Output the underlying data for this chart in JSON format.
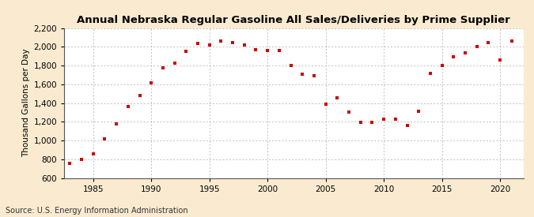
{
  "title": "Annual Nebraska Regular Gasoline All Sales/Deliveries by Prime Supplier",
  "ylabel": "Thousand Gallons per Day",
  "source": "Source: U.S. Energy Information Administration",
  "background_color": "#faebd0",
  "plot_bg_color": "#ffffff",
  "marker_color": "#cc0000",
  "years": [
    1983,
    1984,
    1985,
    1986,
    1987,
    1988,
    1989,
    1990,
    1991,
    1992,
    1993,
    1994,
    1995,
    1996,
    1997,
    1998,
    1999,
    2000,
    2001,
    2002,
    2003,
    2004,
    2005,
    2006,
    2007,
    2008,
    2009,
    2010,
    2011,
    2012,
    2013,
    2014,
    2015,
    2016,
    2017,
    2018,
    2019,
    2020,
    2021
  ],
  "values": [
    755,
    800,
    860,
    1020,
    1175,
    1360,
    1480,
    1620,
    1775,
    1830,
    1950,
    2040,
    2020,
    2060,
    2050,
    2020,
    1970,
    1960,
    1960,
    1800,
    1710,
    1690,
    1390,
    1460,
    1300,
    1195,
    1195,
    1230,
    1230,
    1160,
    1310,
    1720,
    1800,
    1895,
    1935,
    2000,
    2050,
    1860,
    2060
  ],
  "ylim": [
    600,
    2200
  ],
  "yticks": [
    600,
    800,
    1000,
    1200,
    1400,
    1600,
    1800,
    2000,
    2200
  ],
  "xlim": [
    1982.5,
    2022
  ],
  "xticks": [
    1985,
    1990,
    1995,
    2000,
    2005,
    2010,
    2015,
    2020
  ],
  "grid_color": "#aaaaaa",
  "title_fontsize": 9.5,
  "label_fontsize": 7.5,
  "tick_fontsize": 7.5,
  "source_fontsize": 7,
  "marker_size": 8
}
